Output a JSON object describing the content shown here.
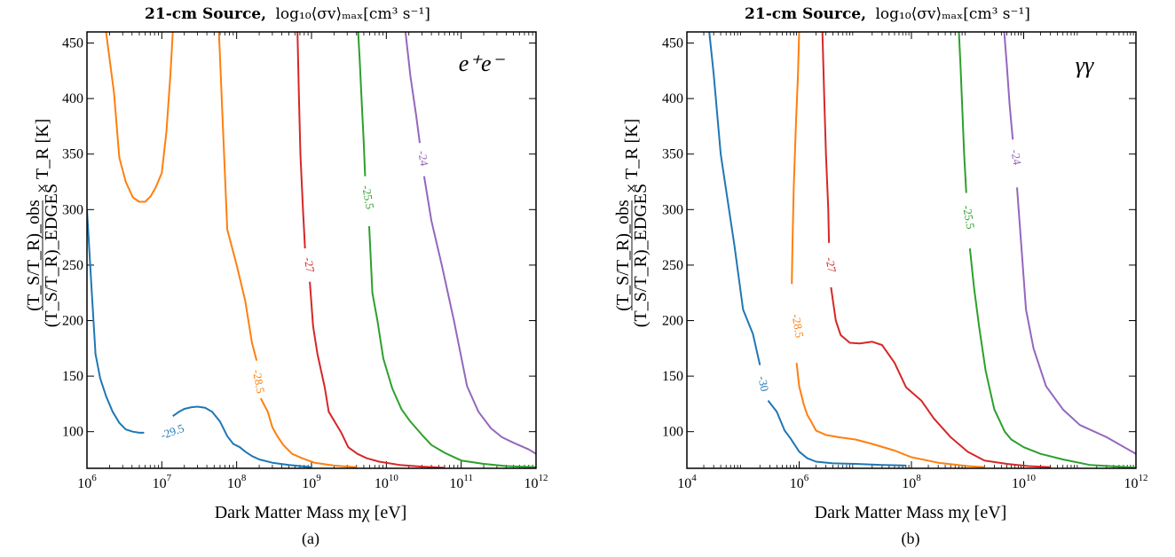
{
  "figure": {
    "panel_labels": [
      "(a)",
      "(b)"
    ]
  },
  "chart_data": [
    {
      "type": "line",
      "subtype": "contour",
      "title": "21-cm Source, log10⟨σv⟩max[cm3 s−1]",
      "title_parts": {
        "bold": "21-cm Source,",
        "rest": "log₁₀⟨σv⟩ₘₐₓ[cm³ s⁻¹]"
      },
      "channel_label": "e⁺e⁻",
      "xlabel": "Dark Matter Mass mχ [eV]",
      "ylabel": "(TS/TR)obs / (TS/TR)EDGES × TR [K]",
      "ylabel_parts": {
        "num": "(T_S/T_R)_obs",
        "den": "(T_S/T_R)_EDGES",
        "rest": "× T_R [K]"
      },
      "x_scale": "log",
      "xlim": [
        1000000,
        1000000000000
      ],
      "ylim": [
        67,
        460
      ],
      "xticks": [
        {
          "v": 1000000,
          "label": "10^6"
        },
        {
          "v": 10000000,
          "label": "10^7"
        },
        {
          "v": 100000000,
          "label": "10^8"
        },
        {
          "v": 1000000000,
          "label": "10^9"
        },
        {
          "v": 10000000000,
          "label": "10^10"
        },
        {
          "v": 100000000000,
          "label": "10^11"
        },
        {
          "v": 1000000000000,
          "label": "10^12"
        }
      ],
      "yticks": [
        100,
        150,
        200,
        250,
        300,
        350,
        400,
        450
      ],
      "series": [
        {
          "name": "-29.5",
          "color": "#1f77b4",
          "label_at": [
            14000000,
            99
          ],
          "points": [
            [
              1000000,
              300
            ],
            [
              1150000,
              230
            ],
            [
              1300000,
              170
            ],
            [
              1500000,
              148
            ],
            [
              1800000,
              132
            ],
            [
              2200000,
              118
            ],
            [
              2700000,
              108
            ],
            [
              3300000,
              102
            ],
            [
              4100000,
              100
            ],
            [
              5000000,
              99
            ],
            [
              5800000,
              99
            ],
            null,
            [
              14000000,
              114
            ],
            [
              17000000,
              118
            ],
            [
              20000000,
              120.5
            ],
            [
              25000000,
              122
            ],
            [
              30000000,
              122.5
            ],
            [
              38000000,
              121.5
            ],
            [
              47000000,
              118
            ],
            [
              60000000,
              109
            ],
            [
              75000000,
              96
            ],
            [
              90000000,
              89
            ],
            [
              110000000,
              86
            ],
            [
              130000000,
              82
            ],
            [
              160000000,
              78
            ],
            [
              200000000,
              75
            ],
            [
              300000000,
              72
            ],
            [
              500000000,
              70
            ],
            [
              1000000000,
              68
            ]
          ]
        },
        {
          "name": "-28.5",
          "color": "#ff7f0e",
          "label_at": [
            190000000,
            145
          ],
          "points": [
            [
              1800000,
              460
            ],
            [
              2300000,
              405
            ],
            [
              2700000,
              347
            ],
            [
              3300000,
              325
            ],
            [
              4100000,
              311
            ],
            [
              5000000,
              307
            ],
            [
              6000000,
              307
            ],
            [
              7100000,
              312
            ],
            [
              8300000,
              320
            ],
            [
              10000000,
              333
            ],
            [
              11500000,
              370
            ],
            [
              13000000,
              420
            ],
            [
              14000000,
              460
            ],
            null,
            [
              58000000,
              460
            ],
            [
              65000000,
              380
            ],
            [
              75000000,
              282
            ],
            [
              100000000,
              250
            ],
            [
              130000000,
              218
            ],
            [
              160000000,
              180
            ],
            [
              185000000,
              164
            ],
            null,
            [
              210000000,
              130
            ],
            [
              260000000,
              118
            ],
            [
              300000000,
              104
            ],
            [
              350000000,
              96
            ],
            [
              420000000,
              88
            ],
            [
              550000000,
              80
            ],
            [
              750000000,
              76
            ],
            [
              1100000000,
              72
            ],
            [
              2000000000,
              69.5
            ],
            [
              4000000000,
              68
            ]
          ]
        },
        {
          "name": "-27",
          "color": "#d62728",
          "label_at": [
            900000000,
            250
          ],
          "points": [
            [
              650000000,
              460
            ],
            [
              680000000,
              400
            ],
            [
              710000000,
              350
            ],
            [
              770000000,
              300
            ],
            [
              820000000,
              265
            ],
            null,
            [
              950000000,
              235
            ],
            [
              1050000000,
              195
            ],
            [
              1200000000,
              170
            ],
            [
              1500000000,
              140
            ],
            [
              1700000000,
              118
            ],
            [
              2000000000,
              110
            ],
            [
              2500000000,
              99
            ],
            [
              3100000000,
              86
            ],
            [
              4100000000,
              80
            ],
            [
              5500000000,
              76
            ],
            [
              8000000000,
              73
            ],
            [
              15000000000,
              70
            ],
            [
              30000000000,
              68.5
            ],
            [
              60000000000,
              67.5
            ]
          ]
        },
        {
          "name": "-25.5",
          "color": "#2ca02c",
          "label_at": [
            5500000000,
            311
          ],
          "points": [
            [
              4200000000,
              460
            ],
            [
              4400000000,
              435
            ],
            [
              4700000000,
              395
            ],
            [
              5000000000,
              360
            ],
            [
              5200000000,
              330
            ],
            null,
            [
              5900000000,
              285
            ],
            [
              6500000000,
              225
            ],
            [
              7600000000,
              200
            ],
            [
              9100000000,
              166
            ],
            [
              12000000000,
              139
            ],
            [
              16000000000,
              120
            ],
            [
              21000000000,
              109
            ],
            [
              30000000000,
              97
            ],
            [
              40000000000,
              88
            ],
            [
              60000000000,
              81
            ],
            [
              100000000000,
              74
            ],
            [
              200000000000,
              71
            ],
            [
              400000000000,
              69
            ],
            [
              1000000000000,
              68
            ]
          ]
        },
        {
          "name": "-24",
          "color": "#9467bd",
          "label_at": [
            30000000000,
            346
          ],
          "points": [
            [
              18000000000,
              460
            ],
            [
              21000000000,
              420
            ],
            [
              25000000000,
              385
            ],
            [
              28000000000,
              360
            ],
            null,
            [
              32000000000,
              330
            ],
            [
              40000000000,
              290
            ],
            [
              55000000000,
              250
            ],
            [
              80000000000,
              200
            ],
            [
              120000000000,
              141
            ],
            [
              170000000000,
              118
            ],
            [
              250000000000,
              103
            ],
            [
              350000000000,
              95
            ],
            [
              500000000000,
              90
            ],
            [
              800000000000,
              84
            ],
            [
              1000000000000,
              80
            ]
          ]
        }
      ]
    },
    {
      "type": "line",
      "subtype": "contour",
      "title": "21-cm Source, log10⟨σv⟩max[cm3 s−1]",
      "title_parts": {
        "bold": "21-cm Source,",
        "rest": "log₁₀⟨σv⟩ₘₐₓ[cm³ s⁻¹]"
      },
      "channel_label": "γγ",
      "xlabel": "Dark Matter Mass mχ [eV]",
      "ylabel": "(TS/TR)obs / (TS/TR)EDGES × TR [K]",
      "ylabel_parts": {
        "num": "(T_S/T_R)_obs",
        "den": "(T_S/T_R)_EDGES",
        "rest": "× T_R [K]"
      },
      "x_scale": "log",
      "xlim": [
        10000,
        1000000000000
      ],
      "ylim": [
        67,
        460
      ],
      "xticks": [
        {
          "v": 10000,
          "label": "10^4"
        },
        {
          "v": 1000000,
          "label": "10^6"
        },
        {
          "v": 100000000,
          "label": "10^8"
        },
        {
          "v": 10000000000,
          "label": "10^10"
        },
        {
          "v": 1000000000000,
          "label": "10^12"
        }
      ],
      "yticks": [
        100,
        150,
        200,
        250,
        300,
        350,
        400,
        450
      ],
      "series": [
        {
          "name": "-30",
          "color": "#1f77b4",
          "label_at": [
            220000,
            143
          ],
          "points": [
            [
              25000,
              460
            ],
            [
              30000,
              422
            ],
            [
              40000,
              350
            ],
            [
              70000,
              268
            ],
            [
              100000,
              210
            ],
            [
              150000,
              188
            ],
            [
              200000,
              160
            ],
            null,
            [
              280000,
              128
            ],
            [
              400000,
              118
            ],
            [
              550000,
              101
            ],
            [
              700000,
              94
            ],
            [
              1000000,
              82
            ],
            [
              1400000,
              76
            ],
            [
              2000000,
              73
            ],
            [
              4000000,
              71.5
            ],
            [
              10000000,
              71
            ],
            [
              30000000,
              70
            ],
            [
              80000000,
              69.5
            ]
          ]
        },
        {
          "name": "-28.5",
          "color": "#ff7f0e",
          "label_at": [
            900000,
            195
          ],
          "points": [
            [
              1000000,
              460
            ],
            [
              950000,
              420
            ],
            [
              880000,
              380
            ],
            [
              800000,
              320
            ],
            [
              760000,
              270
            ],
            [
              740000,
              233
            ],
            null,
            [
              900000,
              162
            ],
            [
              1000000,
              141
            ],
            [
              1200000,
              125
            ],
            [
              1400000,
              115
            ],
            [
              1600000,
              110
            ],
            [
              2000000,
              101
            ],
            [
              3000000,
              97
            ],
            [
              5000000,
              95
            ],
            [
              10000000,
              93
            ],
            [
              20000000,
              89
            ],
            [
              50000000,
              83
            ],
            [
              100000000,
              77
            ],
            [
              300000000,
              72
            ],
            [
              1000000000,
              69
            ],
            [
              2000000000,
              68
            ]
          ]
        },
        {
          "name": "-27",
          "color": "#d62728",
          "label_at": [
            3500000,
            250
          ],
          "points": [
            [
              2600000,
              460
            ],
            [
              2800000,
              400
            ],
            [
              3000000,
              350
            ],
            [
              3300000,
              300
            ],
            [
              3400000,
              270
            ],
            null,
            [
              3700000,
              230
            ],
            [
              4500000,
              200
            ],
            [
              5500000,
              187
            ],
            [
              8000000,
              180
            ],
            [
              12000000,
              179.5
            ],
            [
              20000000,
              181
            ],
            [
              30000000,
              178
            ],
            [
              50000000,
              162
            ],
            [
              80000000,
              140
            ],
            [
              150000000,
              128
            ],
            [
              250000000,
              112
            ],
            [
              500000000,
              95
            ],
            [
              1000000000,
              82
            ],
            [
              2000000000,
              74
            ],
            [
              5000000000,
              71
            ],
            [
              12000000000,
              69
            ],
            [
              30000000000,
              68
            ]
          ]
        },
        {
          "name": "-25.5",
          "color": "#2ca02c",
          "label_at": [
            1000000000,
            293
          ],
          "points": [
            [
              700000000,
              460
            ],
            [
              750000000,
              430
            ],
            [
              800000000,
              395
            ],
            [
              870000000,
              350
            ],
            [
              950000000,
              315
            ],
            null,
            [
              1100000000,
              265
            ],
            [
              1300000000,
              230
            ],
            [
              1600000000,
              195
            ],
            [
              2100000000,
              155
            ],
            [
              3000000000,
              120
            ],
            [
              4600000000,
              100
            ],
            [
              6000000000,
              93
            ],
            [
              10000000000,
              86
            ],
            [
              20000000000,
              80
            ],
            [
              50000000000,
              75
            ],
            [
              150000000000,
              70
            ],
            [
              500000000000,
              68.5
            ],
            [
              1000000000000,
              67.5
            ]
          ]
        },
        {
          "name": "-24",
          "color": "#9467bd",
          "label_at": [
            7000000000,
            347
          ],
          "points": [
            [
              4500000000,
              460
            ],
            [
              5000000000,
              430
            ],
            [
              5600000000,
              395
            ],
            [
              6400000000,
              363
            ],
            null,
            [
              7600000000,
              320
            ],
            [
              9000000000,
              270
            ],
            [
              11000000000,
              210
            ],
            [
              15000000000,
              175
            ],
            [
              25000000000,
              141
            ],
            [
              50000000000,
              120
            ],
            [
              100000000000,
              106
            ],
            [
              300000000000,
              95
            ],
            [
              1000000000000,
              80
            ]
          ]
        }
      ]
    }
  ]
}
